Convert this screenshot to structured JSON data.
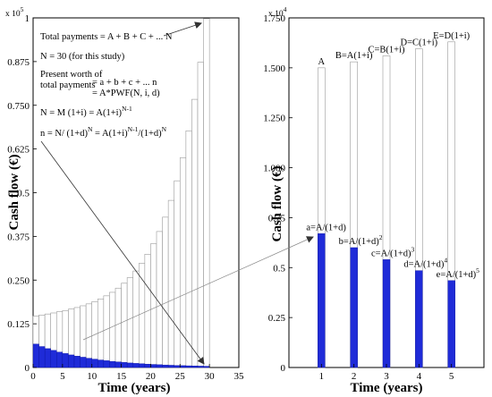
{
  "chart_data": [
    {
      "type": "bar",
      "multiplier": "x 10",
      "multiplier_exp": "5",
      "xlabel": "Time (years)",
      "ylabel": "Cash flow (€)",
      "xlim": [
        0,
        35
      ],
      "ylim": [
        0,
        100000
      ],
      "xticks": [
        "0",
        "5",
        "10",
        "15",
        "20",
        "25",
        "30",
        "35"
      ],
      "yticks": [
        "0",
        "0.125",
        "0.250",
        "0.375",
        "0.5",
        "0.625",
        "0.750",
        "0.875",
        "1"
      ],
      "series": [
        {
          "style": "outline",
          "x": [
            1,
            2,
            3,
            4,
            5,
            6,
            7,
            8,
            9,
            10,
            11,
            12,
            13,
            14,
            15,
            16,
            17,
            18,
            19,
            20,
            21,
            22,
            23,
            24,
            25,
            26,
            27,
            28,
            29,
            30
          ],
          "values": [
            14700,
            15000,
            15300,
            15600,
            15950,
            16300,
            16700,
            17150,
            17650,
            18200,
            18850,
            19600,
            20500,
            21500,
            22700,
            24100,
            25700,
            27600,
            29800,
            32400,
            35400,
            38900,
            43000,
            47800,
            53400,
            60000,
            67700,
            76700,
            87300,
            99800
          ]
        },
        {
          "style": "filled",
          "x": [
            1,
            2,
            3,
            4,
            5,
            6,
            7,
            8,
            9,
            10,
            11,
            12,
            13,
            14,
            15,
            16,
            17,
            18,
            19,
            20,
            21,
            22,
            23,
            24,
            25,
            26,
            27,
            28,
            29,
            30
          ],
          "values": [
            6700,
            6000,
            5400,
            4900,
            4400,
            4000,
            3600,
            3250,
            2950,
            2650,
            2400,
            2150,
            1950,
            1750,
            1600,
            1450,
            1300,
            1180,
            1070,
            970,
            880,
            800,
            720,
            650,
            590,
            540,
            490,
            440,
            400,
            360
          ]
        }
      ],
      "annotations": [
        {
          "text": "Total payments   = A + B + C + ... N"
        },
        {
          "text": "N = 30 (for this study)"
        },
        {
          "text": "Present worth of"
        },
        {
          "text": "total payments"
        },
        {
          "text": "= a + b + c + ... n"
        },
        {
          "text": "= A*PWF(N, i, d)"
        },
        {
          "text": "N = M (1+i) = A(1+i)",
          "sup": "N-1"
        },
        {
          "text": "n = N/ (1+d)",
          "sup": "N",
          "text2": " = A(1+i)",
          "sup2": "N-1",
          "text3": "/(1+d)",
          "sup3": "N"
        }
      ]
    },
    {
      "type": "bar",
      "multiplier": "x 10",
      "multiplier_exp": "4",
      "xlabel": "Time (years)",
      "ylabel": "Cash flow (€)",
      "xlim": [
        0,
        6
      ],
      "ylim": [
        0,
        17500
      ],
      "xticks": [
        "1",
        "2",
        "3",
        "4",
        "5"
      ],
      "yticks": [
        "0",
        "0.25",
        "0.5",
        "0.75",
        "1.000",
        "1.250",
        "1.500",
        "1.750"
      ],
      "series": [
        {
          "style": "outline",
          "x": [
            1,
            2,
            3,
            4,
            5
          ],
          "values": [
            15000,
            15300,
            15600,
            15950,
            16300
          ]
        },
        {
          "style": "filled",
          "x": [
            1,
            2,
            3,
            4,
            5
          ],
          "values": [
            6700,
            6000,
            5400,
            4850,
            4350
          ]
        }
      ],
      "bar_labels_top": [
        "A",
        "B=A(1+i)",
        "C=B(1+i)",
        "D=C(1+i)",
        "E=D(1+i)"
      ],
      "bar_labels_filled": [
        {
          "text": "a=A/(1+d)",
          "sup": ""
        },
        {
          "text": "b=A/(1+d)",
          "sup": "2"
        },
        {
          "text": "c=A/(1+d)",
          "sup": "3"
        },
        {
          "text": "d=A/(1+d)",
          "sup": "4"
        },
        {
          "text": "e=A/(1+d)",
          "sup": "5"
        }
      ]
    }
  ]
}
